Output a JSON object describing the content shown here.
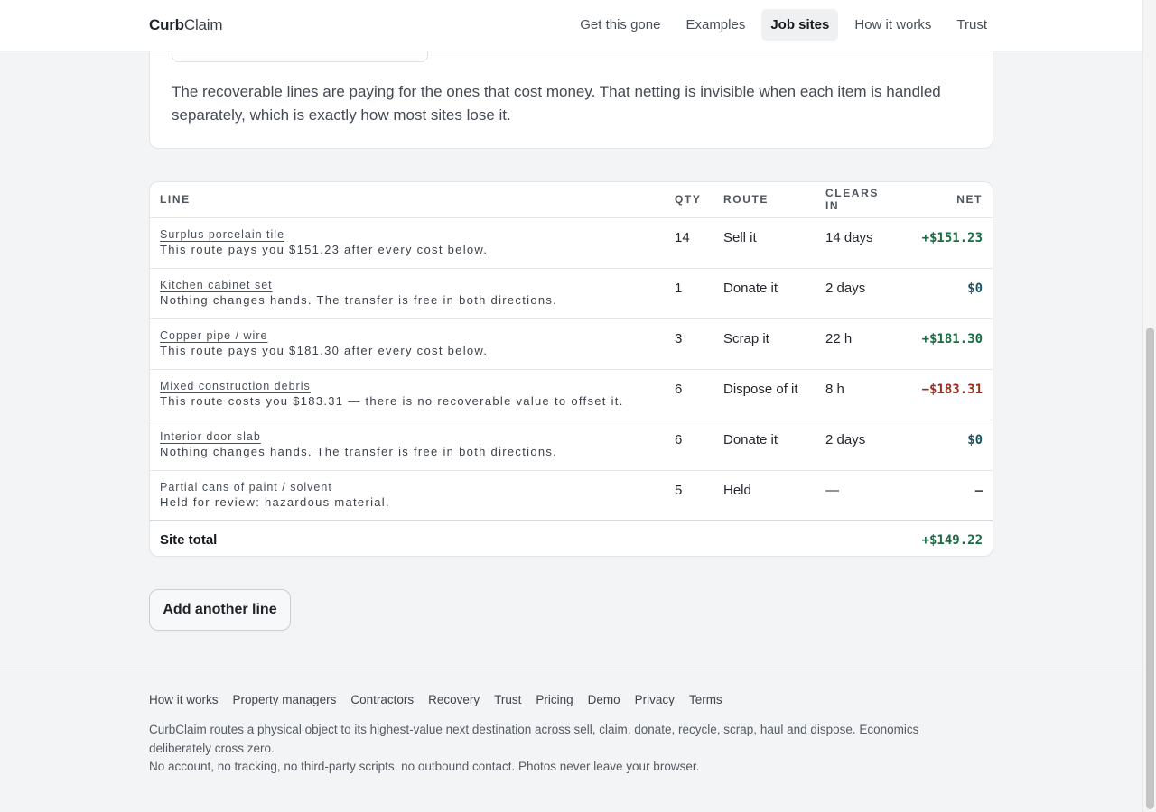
{
  "header": {
    "brand_bold": "Curb",
    "brand_light": "Claim",
    "nav": [
      {
        "label": "Get this gone"
      },
      {
        "label": "Examples"
      },
      {
        "label": "Job sites"
      },
      {
        "label": "How it works"
      },
      {
        "label": "Trust"
      }
    ],
    "active_nav": "Job sites"
  },
  "intro": {
    "text": "The recoverable lines are paying for the ones that cost money. That netting is invisible when each item is handled separately, which is exactly how most sites lose it."
  },
  "table": {
    "columns": {
      "line": "LINE",
      "qty": "QTY",
      "route": "ROUTE",
      "clears": "CLEARS IN",
      "net": "NET"
    },
    "rows": [
      {
        "name": "Surplus porcelain tile",
        "note": "This route pays you $151.23 after every cost below.",
        "qty": "14",
        "route": "Sell it",
        "clears": "14 days",
        "net": "+$151.23",
        "tone": "pos"
      },
      {
        "name": "Kitchen cabinet set",
        "note": "Nothing changes hands. The transfer is free in both directions.",
        "qty": "1",
        "route": "Donate it",
        "clears": "2 days",
        "net": "$0",
        "tone": "zero"
      },
      {
        "name": "Copper pipe / wire",
        "note": "This route pays you $181.30 after every cost below.",
        "qty": "3",
        "route": "Scrap it",
        "clears": "22 h",
        "net": "+$181.30",
        "tone": "pos"
      },
      {
        "name": "Mixed construction debris",
        "note": "This route costs you $183.31 — there is no recoverable value to offset it.",
        "qty": "6",
        "route": "Dispose of it",
        "clears": "8 h",
        "net": "−$183.31",
        "tone": "neg"
      },
      {
        "name": "Interior door slab",
        "note": "Nothing changes hands. The transfer is free in both directions.",
        "qty": "6",
        "route": "Donate it",
        "clears": "2 days",
        "net": "$0",
        "tone": "zero"
      },
      {
        "name": "Partial cans of paint / solvent",
        "note": "Held for review: hazardous material.",
        "qty": "5",
        "route": "Held",
        "clears": "—",
        "net": "—",
        "tone": "dash"
      }
    ],
    "total_label": "Site total",
    "total_value": "+$149.22"
  },
  "actions": {
    "add_line": "Add another line"
  },
  "footer": {
    "links": [
      {
        "label": "How it works"
      },
      {
        "label": "Property managers"
      },
      {
        "label": "Contractors"
      },
      {
        "label": "Recovery"
      },
      {
        "label": "Trust"
      },
      {
        "label": "Pricing"
      },
      {
        "label": "Demo"
      },
      {
        "label": "Privacy"
      },
      {
        "label": "Terms"
      }
    ],
    "line1": "CurbClaim routes a physical object to its highest-value next destination across sell, claim, donate, recycle, scrap, haul and dispose. Economics deliberately cross zero.",
    "line2": "No account, no tracking, no third-party scripts, no outbound contact. Photos never leave your browser."
  },
  "colors": {
    "positive": "#1a6b43",
    "zero": "#1a5566",
    "negative": "#9b2c1e"
  }
}
